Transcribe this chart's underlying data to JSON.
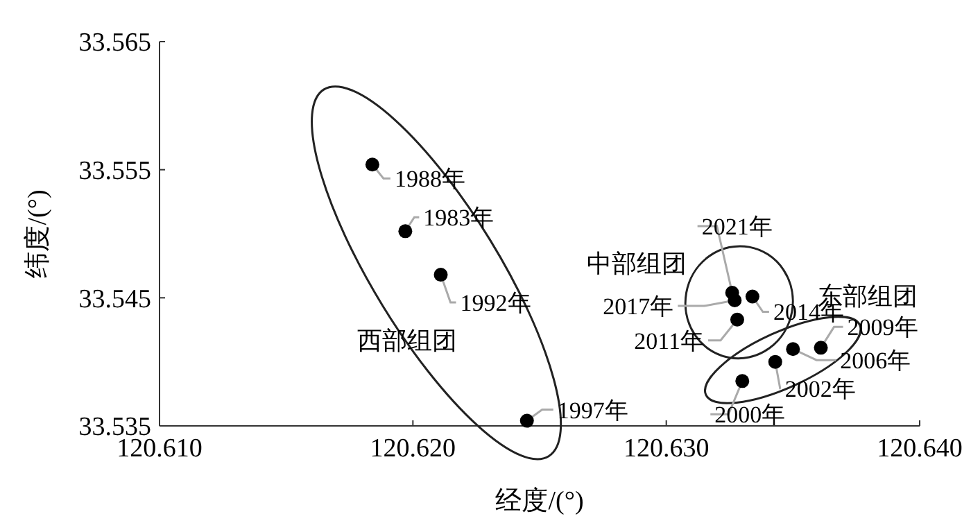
{
  "chart_data": {
    "type": "scatter",
    "xlabel": "经度/(°)",
    "ylabel": "纬度/(°)",
    "xlim": [
      120.61,
      120.64
    ],
    "xticks": [
      {
        "value": 120.61,
        "label": "120.610"
      },
      {
        "value": 120.62,
        "label": "120.620"
      },
      {
        "value": 120.63,
        "label": "120.630"
      },
      {
        "value": 120.64,
        "label": "120.640"
      }
    ],
    "ylim": [
      33.535,
      33.565
    ],
    "yticks": [
      33.535,
      33.545,
      33.555,
      33.565
    ],
    "grid": false,
    "marker": "circle",
    "series": [
      {
        "name": "西部组团",
        "color": "#000000",
        "x": [
          120.6184,
          120.6197,
          120.6211,
          120.6245
        ],
        "values": [
          33.5554,
          33.5502,
          33.5468,
          33.5354
        ]
      },
      {
        "name": "中部组团",
        "color": "#000000",
        "x": [
          120.6326,
          120.6327,
          120.6334,
          120.6328
        ],
        "values": [
          33.5454,
          33.5448,
          33.5451,
          33.5433
        ]
      },
      {
        "name": "东部组团",
        "color": "#000000",
        "x": [
          120.6361,
          120.635,
          120.6343,
          120.633
        ],
        "values": [
          33.5411,
          33.541,
          33.54,
          33.5385
        ]
      }
    ],
    "annotations": [
      {
        "text": "1988年",
        "x": 120.6184,
        "y": 33.5554
      },
      {
        "text": "1983年",
        "x": 120.6197,
        "y": 33.5502
      },
      {
        "text": "1992年",
        "x": 120.6211,
        "y": 33.5468
      },
      {
        "text": "1997年",
        "x": 120.6245,
        "y": 33.5354
      },
      {
        "text": "2021年",
        "x": 120.6326,
        "y": 33.5454
      },
      {
        "text": "2017年",
        "x": 120.6327,
        "y": 33.5448
      },
      {
        "text": "2014年",
        "x": 120.6334,
        "y": 33.5451
      },
      {
        "text": "2011年",
        "x": 120.6328,
        "y": 33.5433
      },
      {
        "text": "2009年",
        "x": 120.6361,
        "y": 33.5411
      },
      {
        "text": "2006年",
        "x": 120.635,
        "y": 33.541
      },
      {
        "text": "2002年",
        "x": 120.6343,
        "y": 33.54
      },
      {
        "text": "2000年",
        "x": 120.633,
        "y": 33.5385
      }
    ]
  }
}
